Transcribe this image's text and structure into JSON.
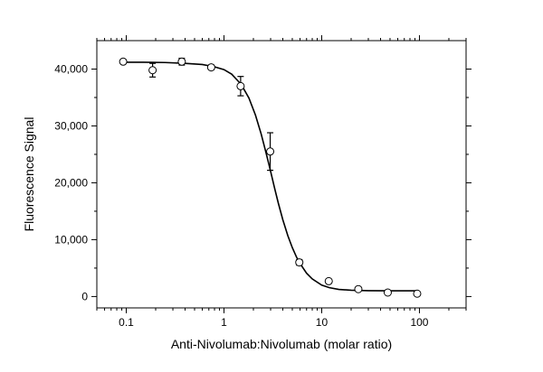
{
  "chart_data": {
    "type": "scatter",
    "title": "",
    "xlabel": "Anti-Nivolumab:Nivolumab (molar ratio)",
    "ylabel": "Fluorescence Signal",
    "x_scale": "log",
    "xlim": [
      0.05,
      300
    ],
    "ylim": [
      -2000,
      45000
    ],
    "x_ticks": [
      0.1,
      1,
      10,
      100
    ],
    "x_tick_labels": [
      "0.1",
      "1",
      "10",
      "100"
    ],
    "y_ticks": [
      0,
      10000,
      20000,
      30000,
      40000
    ],
    "y_tick_labels": [
      "0",
      "10,000",
      "20,000",
      "30,000",
      "40,000"
    ],
    "grid": false,
    "series": [
      {
        "marker": "open-circle",
        "with_error_bars": true,
        "points": [
          {
            "x": 0.093,
            "y": 41300,
            "err": 300
          },
          {
            "x": 0.186,
            "y": 39800,
            "err": 1200
          },
          {
            "x": 0.37,
            "y": 41300,
            "err": 600
          },
          {
            "x": 0.74,
            "y": 40300,
            "err": 400
          },
          {
            "x": 1.48,
            "y": 37000,
            "err": 1700
          },
          {
            "x": 2.97,
            "y": 25500,
            "err": 3300
          },
          {
            "x": 5.9,
            "y": 6000,
            "err": 500
          },
          {
            "x": 11.8,
            "y": 2700,
            "err": 300
          },
          {
            "x": 23.7,
            "y": 1300,
            "err": 300
          },
          {
            "x": 47.4,
            "y": 700,
            "err": 200
          },
          {
            "x": 94.8,
            "y": 500,
            "err": 200
          }
        ]
      },
      {
        "type": "line",
        "style": "fitted sigmoid curve",
        "x": [
          0.093,
          0.15,
          0.25,
          0.4,
          0.6,
          0.8,
          1.0,
          1.2,
          1.5,
          1.8,
          2.1,
          2.4,
          2.7,
          3.0,
          3.3,
          3.6,
          4.0,
          4.5,
          5.0,
          5.5,
          6.0,
          7.0,
          8.0,
          10.0,
          12.0,
          15.0,
          20.0,
          30.0,
          50.0,
          95.0
        ],
        "y": [
          41200,
          41200,
          41150,
          41000,
          40800,
          40400,
          39900,
          39100,
          37300,
          34900,
          31900,
          28600,
          25200,
          22000,
          19000,
          16400,
          13500,
          10700,
          8600,
          7000,
          5800,
          4100,
          3100,
          2000,
          1550,
          1250,
          1100,
          1020,
          1000,
          1000
        ]
      }
    ]
  }
}
